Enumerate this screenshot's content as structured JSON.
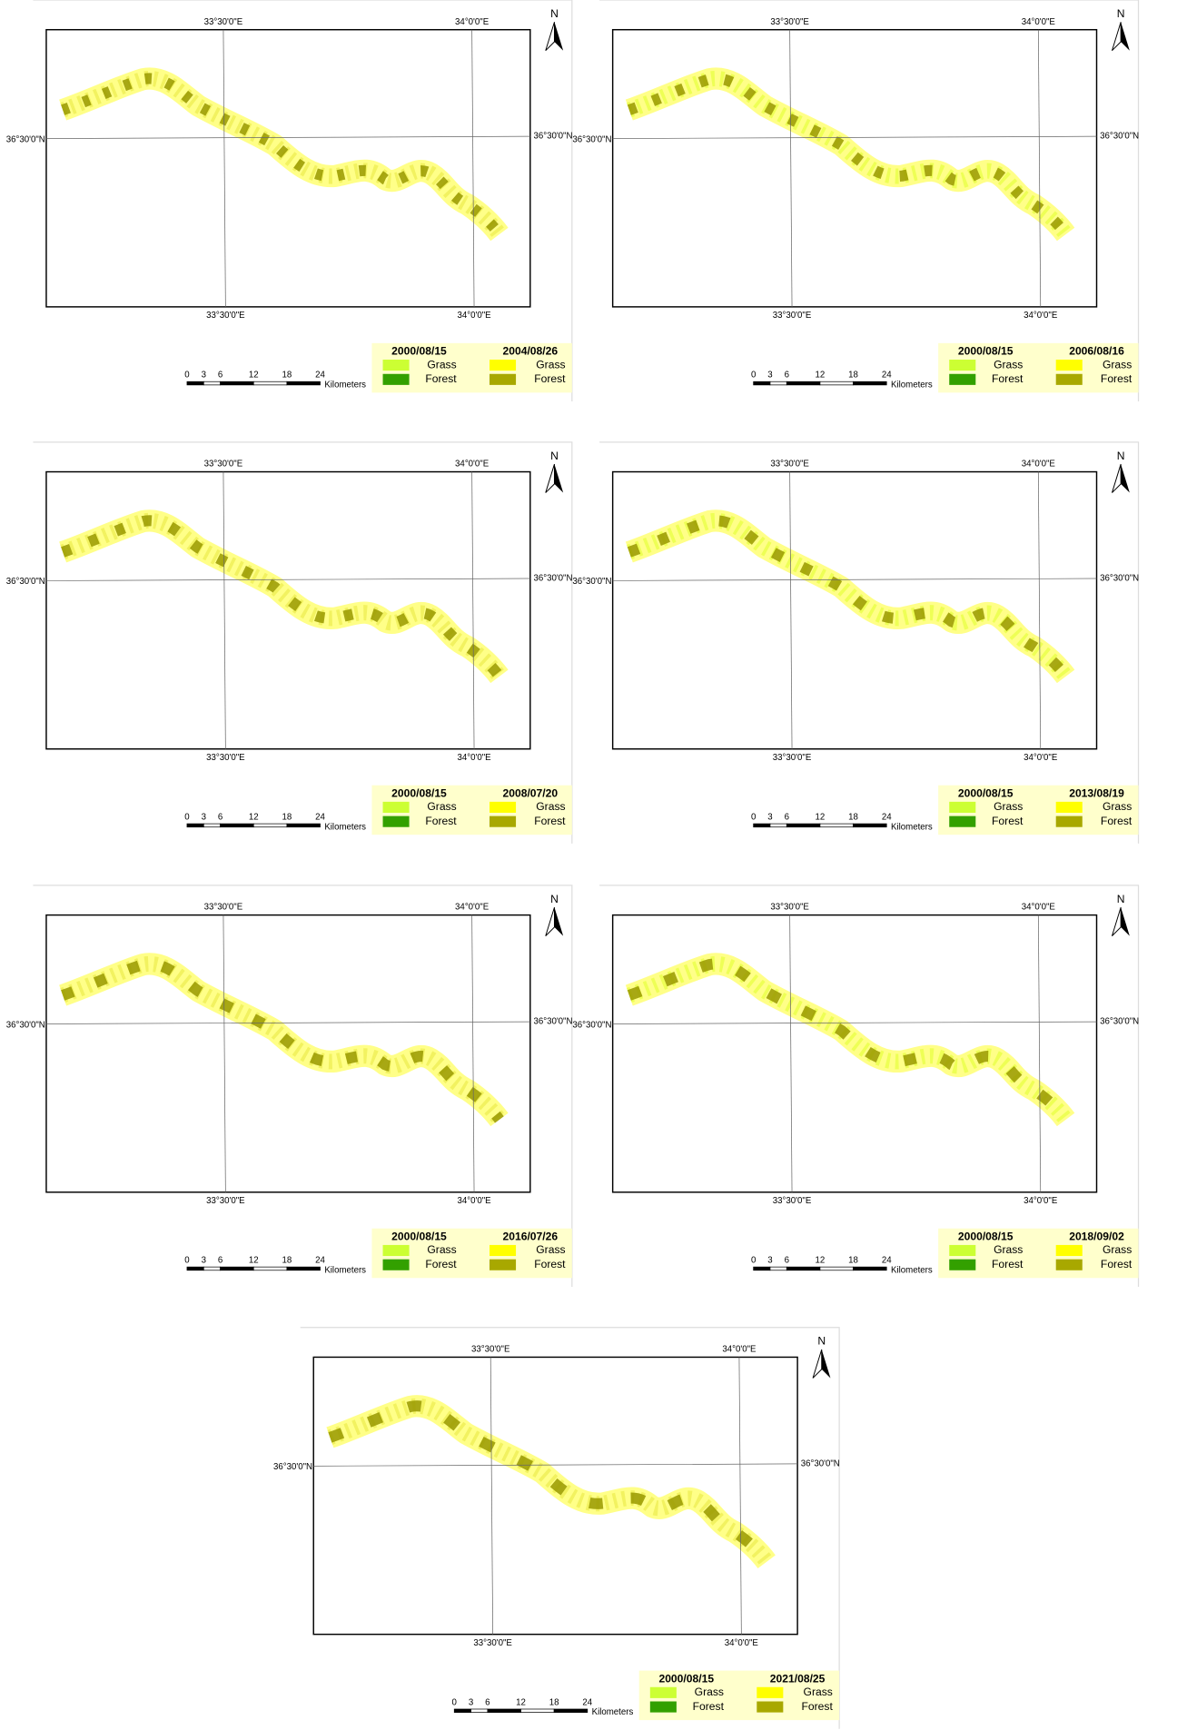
{
  "graticule": {
    "lon_labels": [
      "33°30'0\"E",
      "34°0'0\"E"
    ],
    "lat_label": "36°30'0\"N"
  },
  "north": "N",
  "scale_bar": {
    "ticks": [
      0,
      3,
      6,
      12,
      18,
      24
    ],
    "unit": "Kilometers"
  },
  "legend": {
    "base_date": "2000/08/15",
    "classes": [
      "Grass",
      "Forest"
    ],
    "base_colors": [
      "#ccff33",
      "#33a000"
    ],
    "compare_colors": [
      "#ffff00",
      "#a8a800"
    ]
  },
  "panels": [
    {
      "date": "2004/08/26"
    },
    {
      "date": "2006/08/16"
    },
    {
      "date": "2008/07/20"
    },
    {
      "date": "2013/08/19"
    },
    {
      "date": "2016/07/26"
    },
    {
      "date": "2018/09/02"
    },
    {
      "date": "2021/08/25"
    }
  ]
}
